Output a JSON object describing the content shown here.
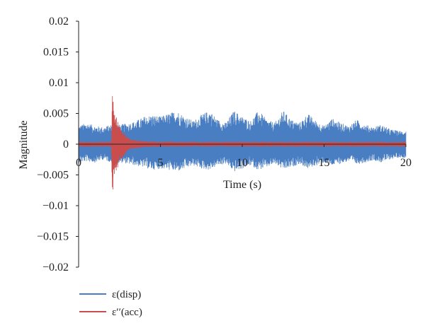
{
  "chart_data": {
    "type": "line",
    "xlabel": "Time (s)",
    "ylabel": "Magnitude",
    "xlim": [
      0,
      20
    ],
    "ylim": [
      -0.02,
      0.02
    ],
    "x_ticks": [
      0,
      5,
      10,
      15,
      20
    ],
    "x_tick_labels": [
      "0",
      "5",
      "10",
      "15",
      "20"
    ],
    "y_ticks": [
      0.02,
      0.015,
      0.01,
      0.005,
      0,
      -0.005,
      -0.01,
      -0.015,
      -0.02
    ],
    "y_tick_labels": [
      "0.02",
      "0.015",
      "0.01",
      "0.005",
      "0",
      "−0.005",
      "−0.01",
      "−0.015",
      "−0.02"
    ],
    "grid": false,
    "legend_position": "bottom-left",
    "series": [
      {
        "name": "ε(disp)",
        "color": "#4a7ec2",
        "envelope": {
          "t": [
            0,
            0.5,
            1,
            1.5,
            2,
            2.2,
            2.5,
            3,
            3.5,
            4,
            4.5,
            5,
            5.5,
            6,
            6.5,
            7,
            7.5,
            8,
            8.5,
            9,
            9.5,
            10,
            10.5,
            11,
            11.5,
            12,
            12.5,
            13,
            13.5,
            14,
            14.5,
            15,
            15.5,
            16,
            16.5,
            17,
            17.5,
            18,
            18.5,
            19,
            19.5,
            20
          ],
          "max": [
            0.003,
            0.0035,
            0.003,
            0.0028,
            0.0032,
            0.0035,
            0.0032,
            0.0034,
            0.0038,
            0.0045,
            0.0048,
            0.0045,
            0.005,
            0.0055,
            0.0045,
            0.0038,
            0.0048,
            0.0055,
            0.004,
            0.0035,
            0.0055,
            0.0045,
            0.0038,
            0.0055,
            0.004,
            0.0035,
            0.0055,
            0.004,
            0.0035,
            0.005,
            0.0038,
            0.003,
            0.0042,
            0.0035,
            0.003,
            0.004,
            0.0032,
            0.0028,
            0.0032,
            0.0025,
            0.0022,
            0.0022
          ],
          "min": [
            -0.003,
            -0.0028,
            -0.003,
            -0.0025,
            -0.003,
            -0.0033,
            -0.003,
            -0.0032,
            -0.0035,
            -0.0038,
            -0.0042,
            -0.004,
            -0.0042,
            -0.0045,
            -0.004,
            -0.0035,
            -0.004,
            -0.0042,
            -0.0035,
            -0.0032,
            -0.0045,
            -0.004,
            -0.0035,
            -0.0042,
            -0.0038,
            -0.0032,
            -0.0042,
            -0.0038,
            -0.0032,
            -0.004,
            -0.0035,
            -0.003,
            -0.0035,
            -0.0032,
            -0.0028,
            -0.0033,
            -0.003,
            -0.0026,
            -0.003,
            -0.0025,
            -0.0022,
            -0.0022
          ]
        }
      },
      {
        "name": "ε′′(acc)",
        "color": "#c94d4d",
        "envelope": {
          "t": [
            0,
            2.0,
            2.05,
            2.1,
            2.15,
            2.3,
            2.5,
            2.8,
            3.2,
            4,
            6,
            10,
            15,
            20
          ],
          "max": [
            0.0004,
            0.0004,
            0.0086,
            0.0075,
            0.006,
            0.0045,
            0.003,
            0.0018,
            0.0008,
            0.0005,
            0.0004,
            0.0004,
            0.0004,
            0.0004
          ],
          "min": [
            -0.0004,
            -0.0004,
            -0.0087,
            -0.0075,
            -0.006,
            -0.0045,
            -0.003,
            -0.0018,
            -0.0008,
            -0.0005,
            -0.0004,
            -0.0004,
            -0.0004,
            -0.0004
          ]
        }
      }
    ]
  }
}
